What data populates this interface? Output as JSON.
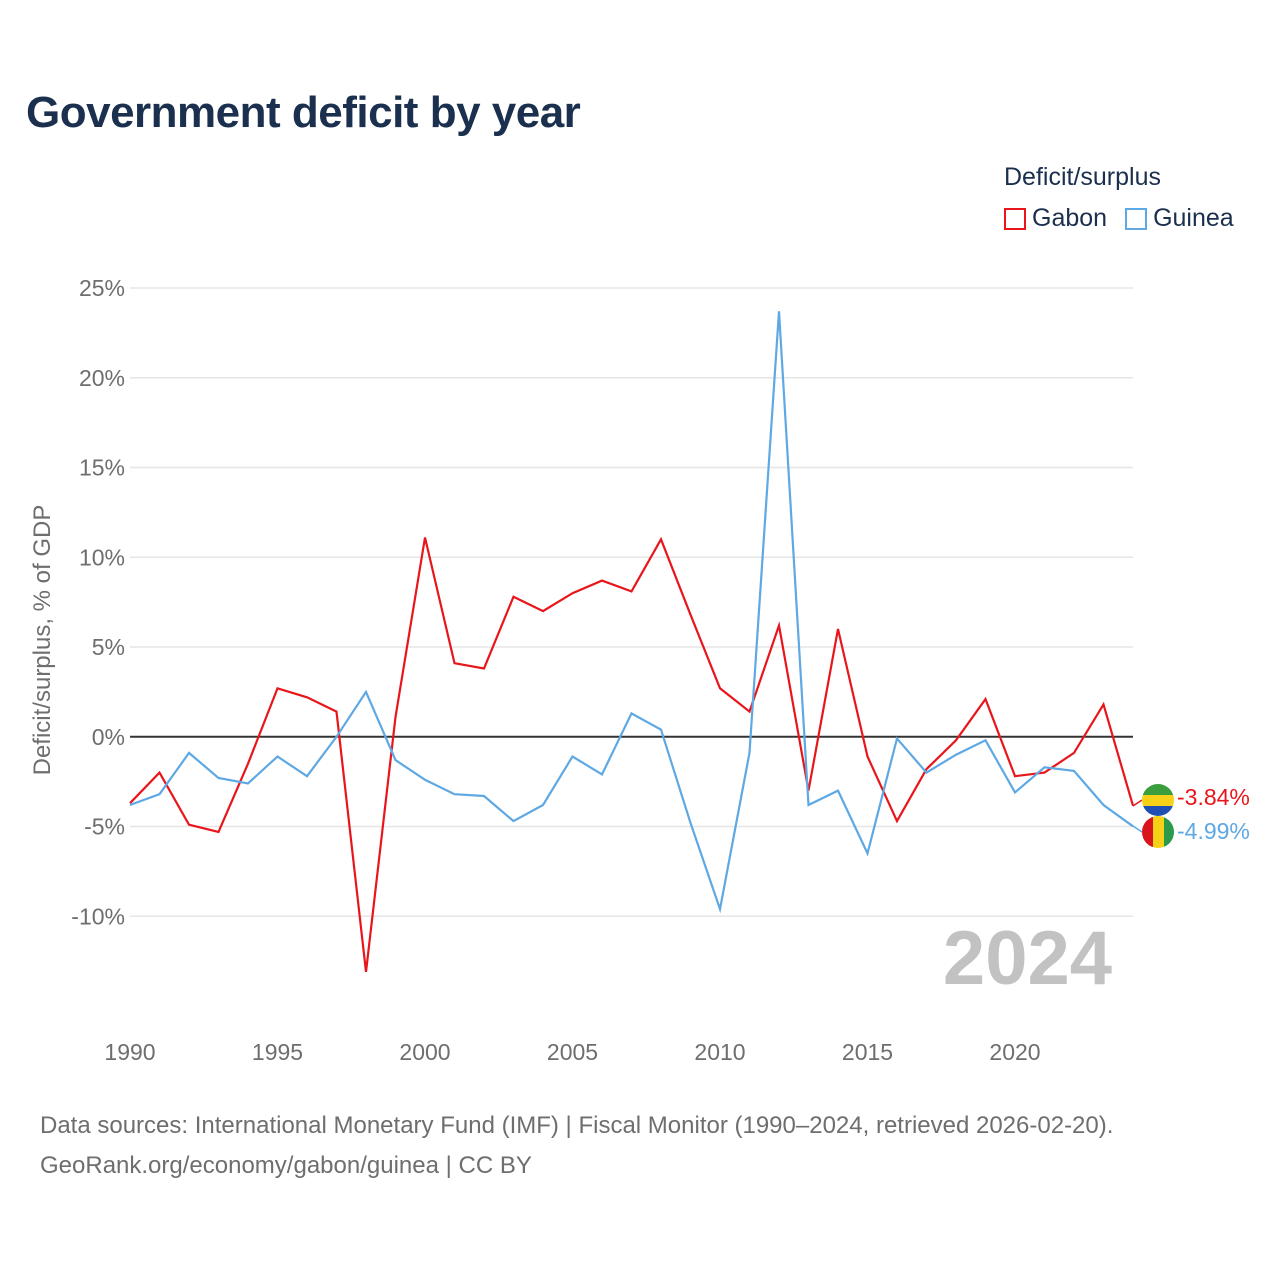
{
  "title": "Government deficit by year",
  "legend": {
    "title": "Deficit/surplus",
    "items": [
      {
        "name": "Gabon",
        "color": "#e8161b"
      },
      {
        "name": "Guinea",
        "color": "#5ea8e4"
      }
    ]
  },
  "year_label": "2024",
  "end_labels": {
    "gabon": "-3.84%",
    "guinea": "-4.99%"
  },
  "footer": {
    "line1": "Data sources: International Monetary Fund (IMF) | Fiscal Monitor (1990–2024, retrieved 2026-02-20).",
    "line2": "GeoRank.org/economy/gabon/guinea | CC BY"
  },
  "chart_data": {
    "type": "line",
    "title": "Government deficit by year",
    "xlabel": "",
    "ylabel": "Deficit/surplus, % of GDP",
    "xlim": [
      1990,
      2024
    ],
    "ylim": [
      -15,
      25
    ],
    "yticks": [
      25,
      20,
      15,
      10,
      5,
      0,
      -5,
      -10
    ],
    "ytick_labels": [
      "25%",
      "20%",
      "15%",
      "10%",
      "5%",
      "0%",
      "-5%",
      "-10%"
    ],
    "xticks": [
      1990,
      1995,
      2000,
      2005,
      2010,
      2015,
      2020
    ],
    "xtick_labels": [
      "1990",
      "1995",
      "2000",
      "2005",
      "2010",
      "2015",
      "2020"
    ],
    "x": [
      1990,
      1991,
      1992,
      1993,
      1994,
      1995,
      1996,
      1997,
      1998,
      1999,
      2000,
      2001,
      2002,
      2003,
      2004,
      2005,
      2006,
      2007,
      2008,
      2009,
      2010,
      2011,
      2012,
      2013,
      2014,
      2015,
      2016,
      2017,
      2018,
      2019,
      2020,
      2021,
      2022,
      2023,
      2024
    ],
    "series": [
      {
        "name": "Gabon",
        "color": "#e8161b",
        "values": [
          -3.7,
          -2.0,
          -4.9,
          -5.3,
          -1.5,
          2.7,
          2.2,
          1.4,
          -13.1,
          1.1,
          11.1,
          4.1,
          3.8,
          7.8,
          7.0,
          8.0,
          8.7,
          8.1,
          11.0,
          6.8,
          2.7,
          1.4,
          6.2,
          -3.0,
          6.0,
          -1.1,
          -4.7,
          -1.8,
          -0.2,
          2.1,
          -2.2,
          -2.0,
          -0.9,
          1.8,
          -3.84
        ]
      },
      {
        "name": "Guinea",
        "color": "#5ea8e4",
        "values": [
          -3.8,
          -3.2,
          -0.9,
          -2.3,
          -2.6,
          -1.1,
          -2.2,
          0.0,
          2.5,
          -1.3,
          -2.4,
          -3.2,
          -3.3,
          -4.7,
          -3.8,
          -1.1,
          -2.1,
          1.3,
          0.4,
          -4.8,
          -9.6,
          -0.9,
          23.7,
          -3.8,
          -3.0,
          -6.5,
          -0.1,
          -2.0,
          -1.0,
          -0.2,
          -3.1,
          -1.7,
          -1.9,
          -3.8,
          -4.99
        ]
      }
    ],
    "grid": true,
    "legend_position": "top-right"
  }
}
